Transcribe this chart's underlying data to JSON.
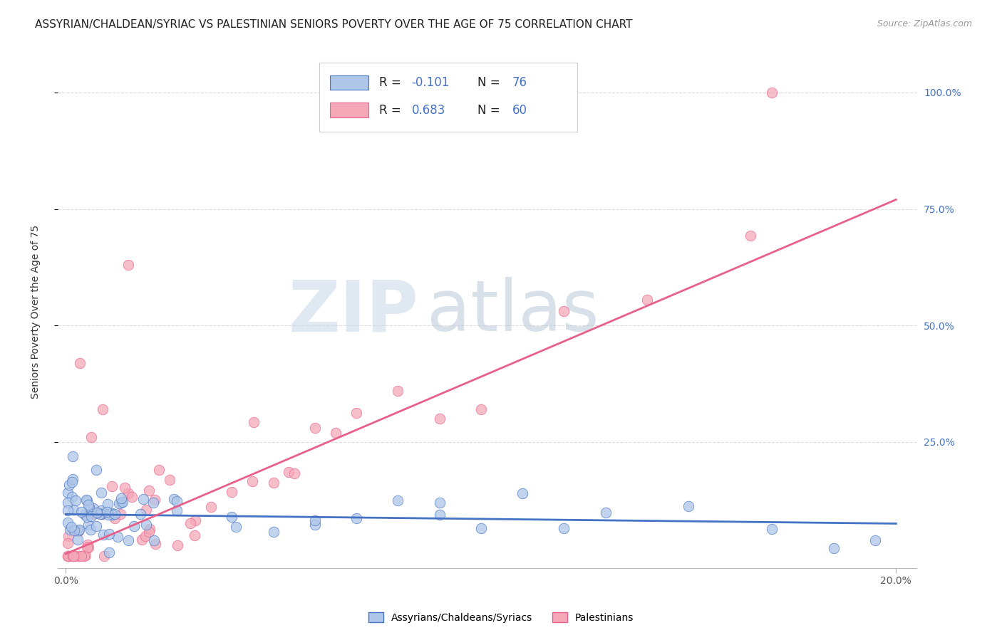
{
  "title": "ASSYRIAN/CHALDEAN/SYRIAC VS PALESTINIAN SENIORS POVERTY OVER THE AGE OF 75 CORRELATION CHART",
  "source": "Source: ZipAtlas.com",
  "ylabel": "Seniors Poverty Over the Age of 75",
  "xlim": [
    -0.002,
    0.205
  ],
  "ylim": [
    -0.02,
    1.08
  ],
  "ytick_values": [
    0.25,
    0.5,
    0.75,
    1.0
  ],
  "ytick_labels": [
    "25.0%",
    "50.0%",
    "75.0%",
    "100.0%"
  ],
  "xtick_values": [
    0.0,
    0.2
  ],
  "xtick_labels": [
    "0.0%",
    "20.0%"
  ],
  "r_assyrian": -0.101,
  "n_assyrian": 76,
  "r_palestinian": 0.683,
  "n_palestinian": 60,
  "color_assyrian": "#aec6e8",
  "color_palestinian": "#f4a8b8",
  "line_color_assyrian": "#4472c4",
  "line_color_palestinian": "#e8608a",
  "watermark_zip": "ZIP",
  "watermark_atlas": "atlas",
  "watermark_color_zip": "#c8d8e8",
  "watermark_color_atlas": "#b8c8d8",
  "background_color": "#ffffff",
  "legend_label_assyrian": "Assyrians/Chaldeans/Syriacs",
  "legend_label_palestinian": "Palestinians",
  "grid_color": "#dddddd",
  "title_fontsize": 11,
  "axis_label_fontsize": 10,
  "tick_label_color_right": "#4472c4",
  "trend_assy_x0": 0.0,
  "trend_assy_y0": 0.095,
  "trend_assy_x1": 0.2,
  "trend_assy_y1": 0.075,
  "trend_pal_x0": 0.0,
  "trend_pal_y0": 0.01,
  "trend_pal_x1": 0.2,
  "trend_pal_y1": 0.77
}
